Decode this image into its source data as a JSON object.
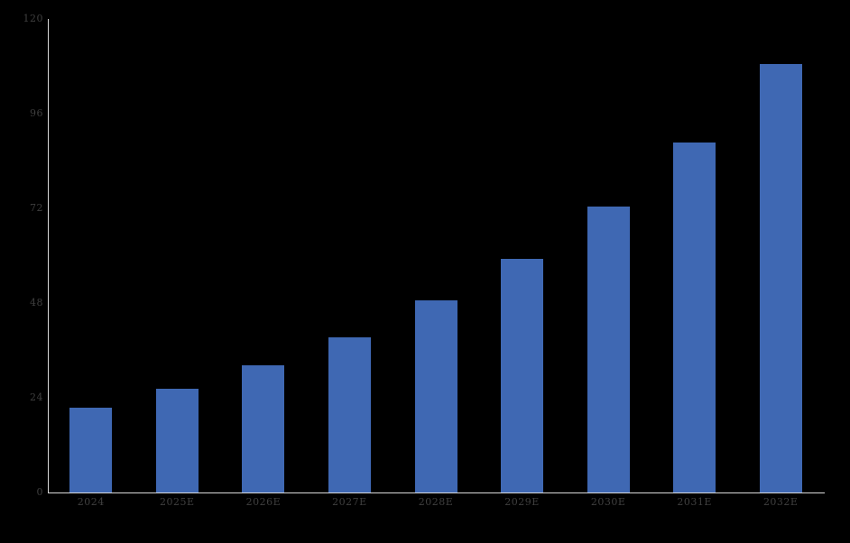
{
  "chart_data": {
    "type": "bar",
    "categories": [
      "2024",
      "2025E",
      "2026E",
      "2027E",
      "2028E",
      "2029E",
      "2030E",
      "2031E",
      "2032E"
    ],
    "values": [
      21.5,
      26.3,
      32.3,
      39.4,
      48.7,
      59.3,
      72.5,
      88.8,
      108.6
    ],
    "title": "",
    "xlabel": "",
    "ylabel": "",
    "ylim": [
      0,
      120
    ],
    "yticks": [
      0,
      24,
      48,
      72,
      96,
      120
    ],
    "grid": false,
    "legend": false,
    "background_color": "#000000",
    "bar_color": "#3F68B3",
    "axis_line_color": "#D9D9D9",
    "tick_label_color": "#3F3F3F"
  }
}
